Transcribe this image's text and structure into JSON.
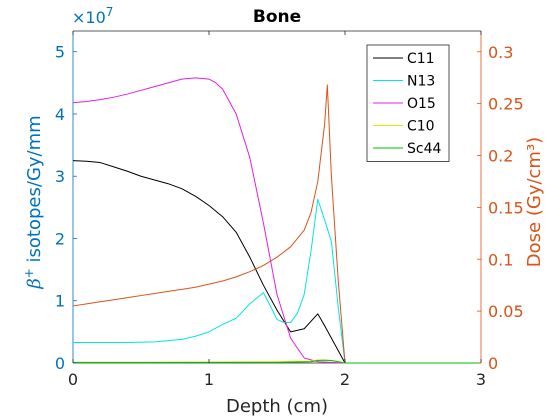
{
  "chart_data": {
    "type": "line",
    "title": "Bone",
    "xlabel": "Depth (cm)",
    "ylabel_left_prefix": "β",
    "ylabel_left_sup": "+",
    "ylabel_left_rest": " isotopes/Gy/mm",
    "ylabel_right": "Dose (Gy/cm³)",
    "left_multiplier": "×10",
    "left_multiplier_exp": "7",
    "xlim": [
      0,
      3
    ],
    "ylim_left": [
      0,
      5.333
    ],
    "ylim_right": [
      0,
      0.32
    ],
    "xticks": [
      "0",
      "1",
      "2",
      "3"
    ],
    "yticks_left": [
      "0",
      "1",
      "2",
      "3",
      "4",
      "5"
    ],
    "yticks_right": [
      "0",
      "0.05",
      "0.1",
      "0.15",
      "0.2",
      "0.25",
      "0.3"
    ],
    "colors": {
      "left_axis": "#0072BD",
      "right_axis": "#D95319",
      "frame": "#262626"
    },
    "series": [
      {
        "name": "C11",
        "axis": "left",
        "color": "#000000",
        "x": [
          0,
          0.1,
          0.2,
          0.3,
          0.4,
          0.5,
          0.6,
          0.7,
          0.8,
          0.9,
          1.0,
          1.1,
          1.2,
          1.3,
          1.4,
          1.5,
          1.6,
          1.7,
          1.8,
          1.85,
          1.9,
          2.0
        ],
        "y": [
          3.25,
          3.24,
          3.22,
          3.15,
          3.08,
          3.0,
          2.94,
          2.88,
          2.8,
          2.68,
          2.53,
          2.35,
          2.1,
          1.7,
          1.25,
          0.85,
          0.5,
          0.55,
          0.79,
          0.6,
          0.4,
          0.0
        ]
      },
      {
        "name": "N13",
        "axis": "left",
        "color": "#00E5E5",
        "x": [
          0,
          0.2,
          0.4,
          0.6,
          0.7,
          0.8,
          0.9,
          1.0,
          1.1,
          1.2,
          1.3,
          1.4,
          1.45,
          1.5,
          1.55,
          1.6,
          1.65,
          1.7,
          1.75,
          1.8,
          1.85,
          1.9,
          1.95,
          2.0
        ],
        "y": [
          0.33,
          0.33,
          0.33,
          0.34,
          0.36,
          0.38,
          0.43,
          0.5,
          0.62,
          0.72,
          0.95,
          1.13,
          0.92,
          0.7,
          0.65,
          0.65,
          0.8,
          1.1,
          1.8,
          2.63,
          2.3,
          1.95,
          0.9,
          0.0
        ]
      },
      {
        "name": "O15",
        "axis": "left",
        "color": "#E020E0",
        "x": [
          0,
          0.1,
          0.2,
          0.3,
          0.4,
          0.5,
          0.6,
          0.7,
          0.8,
          0.9,
          1.0,
          1.05,
          1.1,
          1.2,
          1.3,
          1.4,
          1.5,
          1.6,
          1.7,
          1.8,
          1.9,
          2.0
        ],
        "y": [
          4.18,
          4.2,
          4.23,
          4.27,
          4.32,
          4.38,
          4.44,
          4.5,
          4.56,
          4.58,
          4.56,
          4.5,
          4.4,
          4.0,
          3.3,
          2.25,
          1.1,
          0.4,
          0.08,
          0.02,
          0.01,
          0.0
        ]
      },
      {
        "name": "C10",
        "axis": "left",
        "color": "#E5E500",
        "x": [
          0,
          0.5,
          1.0,
          1.5,
          1.75,
          1.8,
          1.85,
          1.9,
          2.0,
          3.0
        ],
        "y": [
          0.01,
          0.01,
          0.015,
          0.02,
          0.03,
          0.05,
          0.05,
          0.04,
          0.0,
          0.0
        ]
      },
      {
        "name": "Sc44",
        "axis": "left",
        "color": "#00C000",
        "x": [
          0,
          0.5,
          1.0,
          1.5,
          1.75,
          1.8,
          1.85,
          1.9,
          2.0,
          3.0
        ],
        "y": [
          0.01,
          0.01,
          0.01,
          0.01,
          0.02,
          0.04,
          0.045,
          0.04,
          0.0,
          0.0
        ]
      },
      {
        "name": "Dose",
        "axis": "right",
        "color": "#D95319",
        "x": [
          0,
          0.1,
          0.2,
          0.3,
          0.4,
          0.5,
          0.6,
          0.7,
          0.8,
          0.9,
          1.0,
          1.1,
          1.2,
          1.3,
          1.4,
          1.5,
          1.6,
          1.7,
          1.75,
          1.8,
          1.85,
          1.87,
          1.9,
          1.95,
          2.0
        ],
        "y": [
          0.055,
          0.057,
          0.059,
          0.061,
          0.063,
          0.065,
          0.067,
          0.069,
          0.071,
          0.073,
          0.076,
          0.079,
          0.083,
          0.088,
          0.094,
          0.102,
          0.112,
          0.128,
          0.145,
          0.175,
          0.23,
          0.268,
          0.18,
          0.08,
          0.0
        ]
      }
    ],
    "legend": [
      "C11",
      "N13",
      "O15",
      "C10",
      "Sc44"
    ],
    "legend_position": "top-right"
  }
}
